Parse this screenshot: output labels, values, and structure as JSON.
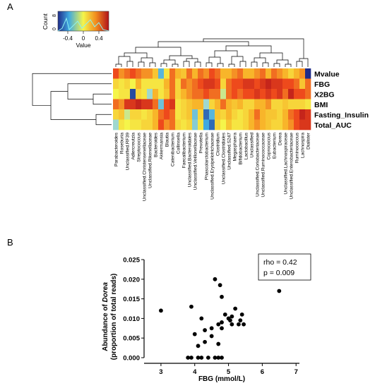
{
  "panel_a": {
    "letter": "A",
    "color_key": {
      "count_label": "Count",
      "count_ticks": [
        "0",
        "8"
      ],
      "value_label": "Value",
      "ticks": [
        "-0.4",
        "0",
        "0.4"
      ]
    }
  },
  "panel_b": {
    "letter": "B"
  },
  "chart_data": [
    {
      "type": "heatmap",
      "rows": [
        "Mvalue",
        "FBG",
        "X2BG",
        "BMI",
        "Fasting_Insulin",
        "Total_AUC"
      ],
      "columns": [
        "Parabacteroides",
        "Roseburia",
        "Unclassified.RF39",
        "Adlercreutzia",
        "Streptococcus",
        "Unclassified.Christensenellaceae",
        "Unclassified.Rikenellaceae",
        "Bacteroides",
        "Akkermansia",
        "Blautia",
        "Catenibacterium",
        "Collinsella",
        "Faecalibacterium",
        "Unclassified.Bacteroidales",
        "Unclassified.Veillonellaceae",
        "Prevotella",
        "Phascolarctobacterium",
        "Unclassified.Erysipelotrichaceae",
        "Clostridium",
        "Unclassified.Clostridiales",
        "Unclassified.S247",
        "Megasphaera",
        "Bifidobacterium",
        "Lactobacillus",
        "Unclassified",
        "Unclassified.Coriobacteriaceae",
        "Unclassified.Ruminococcaceae",
        "Coprococcus",
        "Eubacterium",
        "Dorea",
        "Unclassified.Lachnospiraceae",
        "Unclassified.Enterobacteriaceae",
        "Ruminococcus",
        "Lachnospira",
        "Dialister"
      ],
      "values": [
        [
          0.35,
          0.25,
          0.3,
          0.35,
          0.3,
          0.25,
          0.25,
          0.15,
          -0.25,
          0.05,
          0.3,
          0.2,
          0.15,
          0.3,
          0.2,
          0.3,
          0.25,
          0.35,
          0.3,
          0.2,
          0.2,
          0.25,
          0.3,
          0.2,
          0.2,
          0.25,
          0.3,
          0.2,
          0.3,
          0.25,
          0.2,
          0.1,
          0.2,
          0.25,
          -0.5
        ],
        [
          0.1,
          0.05,
          0.1,
          0.0,
          0.2,
          0.05,
          0.05,
          0.05,
          0.05,
          0.2,
          0.3,
          0.1,
          0.3,
          0.25,
          0.3,
          0.35,
          0.4,
          0.4,
          0.35,
          0.1,
          0.3,
          0.35,
          0.35,
          0.4,
          0.4,
          0.35,
          0.4,
          0.45,
          0.4,
          0.4,
          0.35,
          0.35,
          0.3,
          0.15,
          0.3
        ],
        [
          0.0,
          0.05,
          0.05,
          -0.45,
          0.1,
          0.05,
          -0.1,
          0.2,
          0.05,
          0.15,
          0.3,
          0.1,
          0.2,
          0.25,
          0.3,
          0.3,
          0.35,
          0.3,
          0.3,
          -0.05,
          0.3,
          0.35,
          0.3,
          0.35,
          0.35,
          0.4,
          0.35,
          0.4,
          0.35,
          0.4,
          0.3,
          0.45,
          0.35,
          0.35,
          0.3
        ],
        [
          0.3,
          0.25,
          0.4,
          0.4,
          0.45,
          0.4,
          0.4,
          0.3,
          -0.2,
          0.35,
          0.4,
          0.05,
          0.1,
          0.15,
          0.2,
          0.2,
          -0.1,
          0.1,
          0.2,
          0.3,
          0.2,
          0.15,
          0.2,
          0.1,
          0.1,
          0.2,
          0.2,
          0.25,
          0.1,
          0.1,
          0.15,
          0.1,
          0.1,
          0.1,
          0.05
        ],
        [
          0.1,
          0.15,
          -0.05,
          0.1,
          0.1,
          0.05,
          0.1,
          0.2,
          0.3,
          0.35,
          0.3,
          0.05,
          0.1,
          0.15,
          -0.2,
          0.1,
          -0.4,
          -0.25,
          0.15,
          0.1,
          0.2,
          0.1,
          0.05,
          0.1,
          0.2,
          0.3,
          0.2,
          0.15,
          0.15,
          0.1,
          0.2,
          0.3,
          0.35,
          0.45,
          0.4
        ],
        [
          -0.1,
          0.05,
          0.0,
          0.05,
          0.05,
          0.1,
          0.1,
          0.2,
          0.35,
          0.25,
          0.3,
          0.1,
          0.05,
          0.1,
          -0.15,
          0.05,
          -0.3,
          -0.4,
          0.1,
          0.0,
          0.15,
          0.05,
          0.05,
          0.1,
          0.2,
          0.25,
          0.2,
          0.15,
          0.1,
          0.1,
          0.2,
          0.25,
          0.35,
          0.4,
          0.4
        ]
      ],
      "color_scale": {
        "min": -0.5,
        "max": 0.5,
        "low_color": "#1e2b8a",
        "mid_color": "#fbfb4a",
        "high_color": "#c8141b"
      },
      "dendrograms": {
        "rows": true,
        "columns": true
      }
    },
    {
      "type": "scatter",
      "xlabel": "FBG (mmol/L)",
      "ylabel": "Abundance of Dorea (proportion of total reads)",
      "ylabel_line1_prefix": "Abundance of ",
      "ylabel_line1_italic": "Dorea",
      "ylabel_line2": "(proportion of total reads)",
      "xlim": [
        2.5,
        7.1
      ],
      "ylim": [
        0,
        0.025
      ],
      "xticks": [
        "3",
        "4",
        "5",
        "6",
        "7"
      ],
      "yticks": [
        "0.000",
        "0.005",
        "0.010",
        "0.015",
        "0.020",
        "0.025"
      ],
      "annotation": {
        "rho": "rho = 0.42",
        "p": "p = 0.009"
      },
      "points": [
        {
          "x": 3.0,
          "y": 0.012
        },
        {
          "x": 3.8,
          "y": 0.0
        },
        {
          "x": 3.9,
          "y": 0.013
        },
        {
          "x": 3.9,
          "y": 0.0
        },
        {
          "x": 4.0,
          "y": 0.006
        },
        {
          "x": 4.1,
          "y": 0.003
        },
        {
          "x": 4.1,
          "y": 0.0
        },
        {
          "x": 4.2,
          "y": 0.0
        },
        {
          "x": 4.2,
          "y": 0.01
        },
        {
          "x": 4.3,
          "y": 0.007
        },
        {
          "x": 4.3,
          "y": 0.004
        },
        {
          "x": 4.4,
          "y": 0.0
        },
        {
          "x": 4.5,
          "y": 0.0075
        },
        {
          "x": 4.5,
          "y": 0.0055
        },
        {
          "x": 4.6,
          "y": 0.02
        },
        {
          "x": 4.6,
          "y": 0.0
        },
        {
          "x": 4.7,
          "y": 0.0085
        },
        {
          "x": 4.7,
          "y": 0.0035
        },
        {
          "x": 4.7,
          "y": 0.0
        },
        {
          "x": 4.75,
          "y": 0.0185
        },
        {
          "x": 4.8,
          "y": 0.0155
        },
        {
          "x": 4.8,
          "y": 0.009
        },
        {
          "x": 4.8,
          "y": 0.0075
        },
        {
          "x": 4.8,
          "y": 0.0
        },
        {
          "x": 4.9,
          "y": 0.011
        },
        {
          "x": 5.0,
          "y": 0.01
        },
        {
          "x": 5.05,
          "y": 0.0095
        },
        {
          "x": 5.1,
          "y": 0.0085
        },
        {
          "x": 5.1,
          "y": 0.0105
        },
        {
          "x": 5.2,
          "y": 0.0125
        },
        {
          "x": 5.3,
          "y": 0.0085
        },
        {
          "x": 5.35,
          "y": 0.0095
        },
        {
          "x": 5.4,
          "y": 0.011
        },
        {
          "x": 5.45,
          "y": 0.0085
        },
        {
          "x": 6.5,
          "y": 0.017
        }
      ]
    }
  ]
}
